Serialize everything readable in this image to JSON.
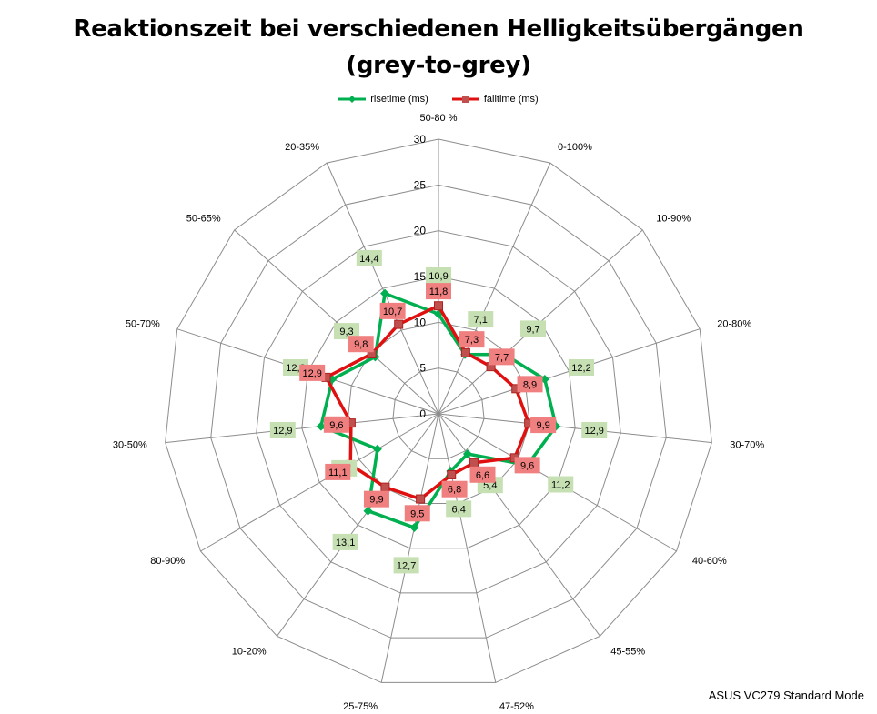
{
  "footnote": "ASUS VC279 Standard Mode",
  "chart_data": {
    "type": "radar",
    "title_line1": "Reaktionszeit bei verschiedenen Helligkeitsübergängen",
    "title_line2": "(grey-to-grey)",
    "categories": [
      "50-80 %",
      "0-100%",
      "10-90%",
      "20-80%",
      "30-70%",
      "40-60%",
      "45-55%",
      "47-52%",
      "25-75%",
      "10-20%",
      "80-90%",
      "30-50%",
      "50-70%",
      "50-65%",
      "20-35%"
    ],
    "rlim": [
      0,
      30
    ],
    "ticks": [
      "0",
      "5",
      "10",
      "15",
      "20",
      "25",
      "30"
    ],
    "grid": true,
    "legend_position": "top",
    "series": [
      {
        "name": "risetime (ms)",
        "color": "#00b050",
        "marker": "diamond",
        "label_color": "#c6e0b4",
        "values": [
          10.9,
          7.1,
          9.7,
          12.2,
          12.9,
          11.2,
          5.4,
          6.4,
          12.7,
          13.1,
          7.7,
          12.9,
          12.2,
          9.3,
          14.4
        ],
        "labels": [
          "10,9",
          "7,1",
          "9,7",
          "12,2",
          "12,9",
          "11,2",
          "5,4",
          "6,4",
          "12,7",
          "13,1",
          "7,7",
          "12,9",
          "12,2",
          "9,3",
          "14,4"
        ]
      },
      {
        "name": "falltime (ms)",
        "color": "#e01010",
        "marker": "square",
        "label_color": "#f08080",
        "values": [
          11.8,
          7.3,
          7.7,
          8.9,
          9.9,
          9.6,
          6.6,
          6.8,
          9.5,
          9.9,
          11.1,
          9.6,
          12.9,
          9.8,
          10.7
        ],
        "labels": [
          "11,8",
          "7,3",
          "7,7",
          "8,9",
          "9,9",
          "9,6",
          "6,6",
          "6,8",
          "9,5",
          "9,9",
          "11,1",
          "9,6",
          "12,9",
          "9,8",
          "10,7"
        ]
      }
    ]
  }
}
